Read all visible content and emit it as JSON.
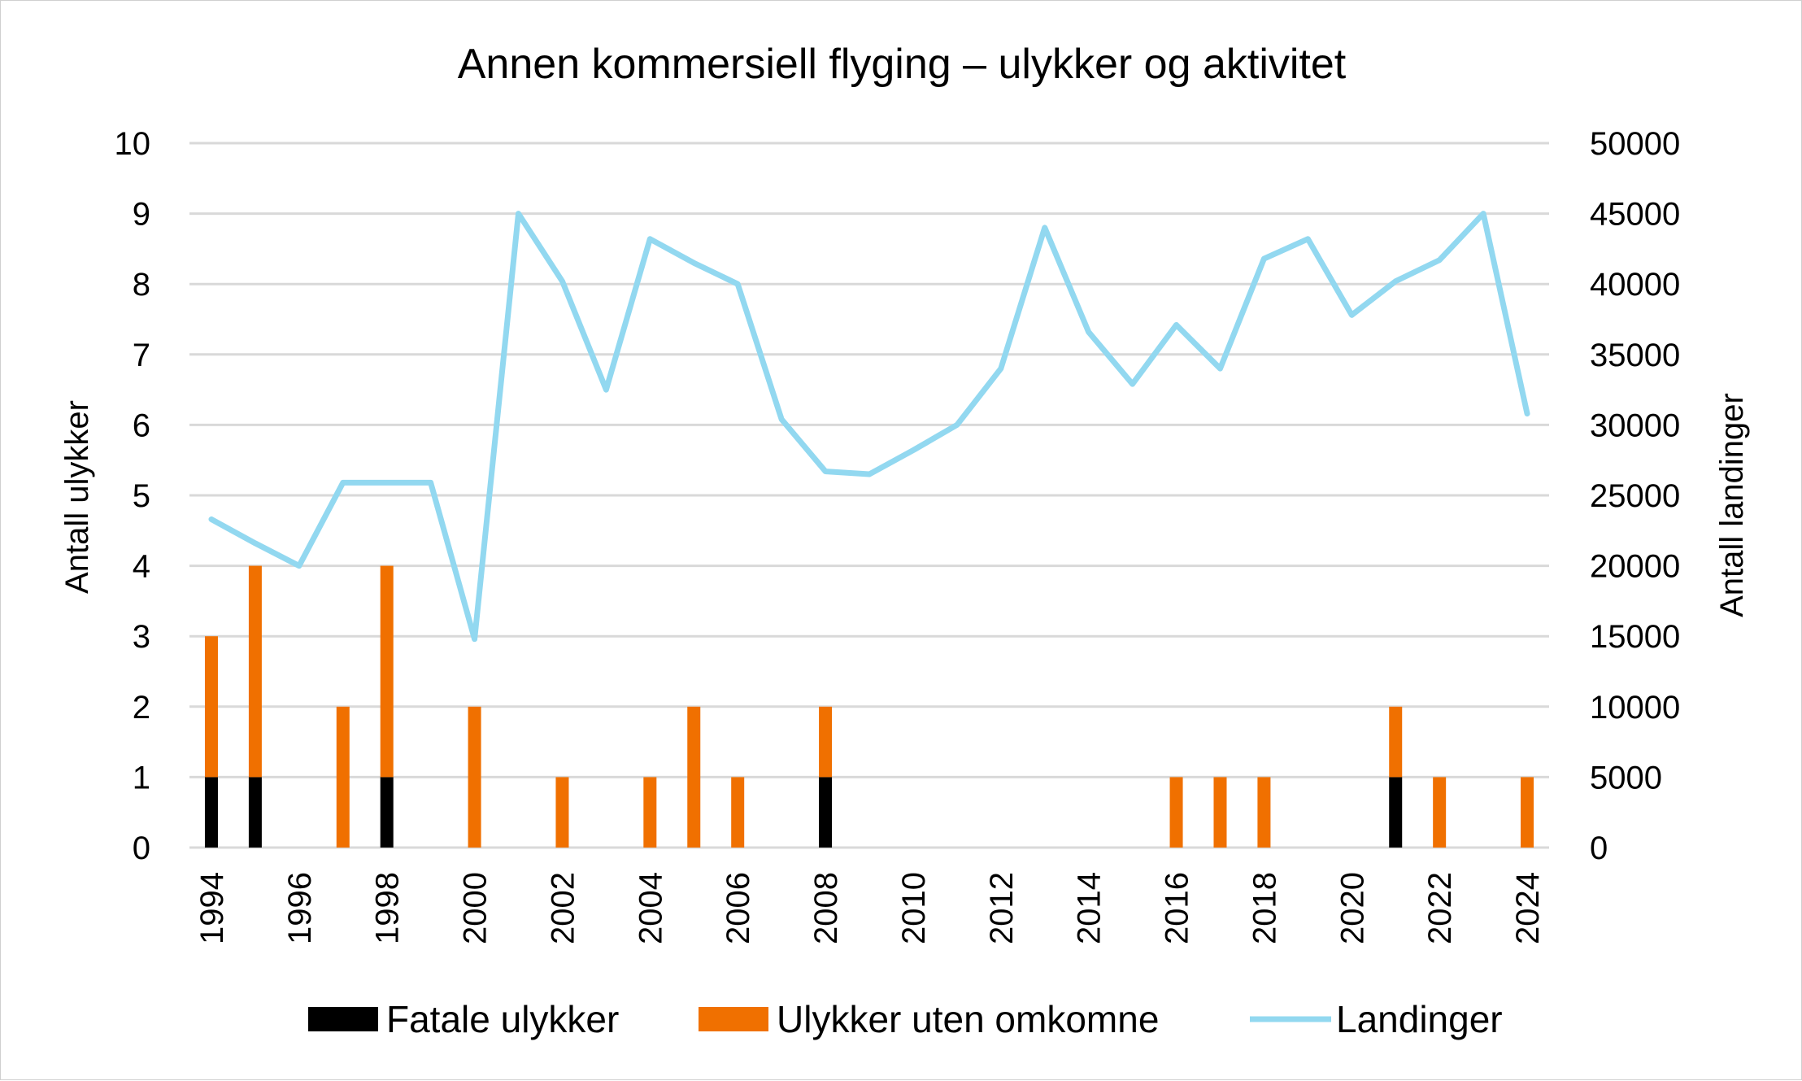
{
  "chart_data": {
    "type": "bar",
    "title": "Annen kommersiell flyging – ulykker og aktivitet",
    "ylabel_left": "Antall ulykker",
    "ylabel_right": "Antall landinger",
    "ylim_left": [
      0,
      10
    ],
    "ylim_right": [
      0,
      50000
    ],
    "yticks_left": [
      "0",
      "1",
      "2",
      "3",
      "4",
      "5",
      "6",
      "7",
      "8",
      "9",
      "10"
    ],
    "yticks_right": [
      "0",
      "5000",
      "10000",
      "15000",
      "20000",
      "25000",
      "30000",
      "35000",
      "40000",
      "45000",
      "50000"
    ],
    "grid": true,
    "legend_position": "bottom",
    "stacked": true,
    "categories": [
      1994,
      1995,
      1996,
      1997,
      1998,
      1999,
      2000,
      2001,
      2002,
      2003,
      2004,
      2005,
      2006,
      2007,
      2008,
      2009,
      2010,
      2011,
      2012,
      2013,
      2014,
      2015,
      2016,
      2017,
      2018,
      2019,
      2020,
      2021,
      2022,
      2023,
      2024
    ],
    "xtick_labels": [
      "1994",
      "1996",
      "1998",
      "2000",
      "2002",
      "2004",
      "2006",
      "2008",
      "2010",
      "2012",
      "2014",
      "2016",
      "2018",
      "2020",
      "2022",
      "2024"
    ],
    "series": [
      {
        "name": "Fatale ulykker",
        "type": "bar",
        "axis": "left",
        "color": "#000000",
        "values": [
          1,
          1,
          0,
          0,
          1,
          0,
          0,
          0,
          0,
          0,
          0,
          0,
          0,
          0,
          1,
          0,
          0,
          0,
          0,
          0,
          0,
          0,
          0,
          0,
          0,
          0,
          0,
          1,
          0,
          0,
          0
        ]
      },
      {
        "name": "Ulykker uten omkomne",
        "type": "bar",
        "axis": "left",
        "color": "#f07000",
        "values": [
          2,
          3,
          0,
          2,
          3,
          0,
          2,
          0,
          1,
          0,
          1,
          2,
          1,
          0,
          1,
          0,
          0,
          0,
          0,
          0,
          0,
          0,
          1,
          1,
          1,
          0,
          0,
          1,
          1,
          0,
          1
        ]
      },
      {
        "name": "Landinger",
        "type": "line",
        "axis": "right",
        "color": "#92d8f0",
        "values": [
          23300,
          21600,
          20000,
          25900,
          25900,
          25900,
          14800,
          45000,
          40200,
          32500,
          43200,
          41500,
          40000,
          30400,
          26700,
          26500,
          28200,
          30000,
          34000,
          44000,
          36600,
          32900,
          37100,
          34000,
          41800,
          43200,
          37800,
          40200,
          41700,
          45000,
          30800
        ]
      }
    ]
  }
}
